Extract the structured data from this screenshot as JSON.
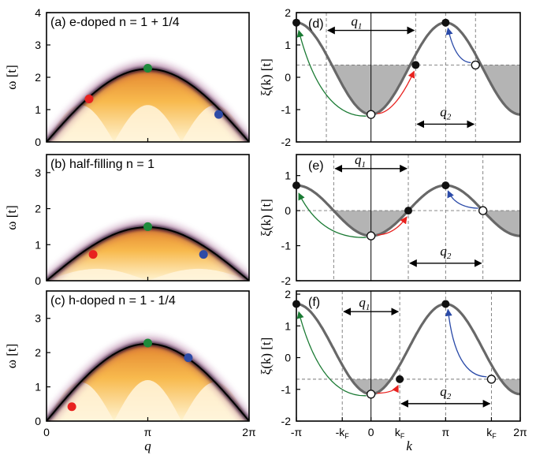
{
  "colors": {
    "red": "#e8221f",
    "green": "#1e8a3b",
    "blue": "#2d4aa6",
    "band_gray": "#686868",
    "fill_gray": "#b4b4b4",
    "arrow_green": "#1a7a33",
    "arrow_red": "#e8221f",
    "arrow_blue": "#2a4aa8"
  },
  "spectra": [
    {
      "panel_label": "(a) e-doped n = 1 + 1/4",
      "ylabel": "ω [t]",
      "yticks": [
        "0",
        "1",
        "2",
        "3",
        "4"
      ],
      "ylim": [
        0,
        4
      ],
      "xticks": [],
      "xlabel": "",
      "dispersion_peak": 2.28,
      "points": [
        {
          "color": "red",
          "q": 0.42,
          "w": 1.33
        },
        {
          "color": "green",
          "q": 1.0,
          "w": 2.28
        },
        {
          "color": "blue",
          "q": 1.7,
          "w": 0.85
        }
      ]
    },
    {
      "panel_label": "(b) half-filling n = 1",
      "ylabel": "ω [t]",
      "yticks": [
        "0",
        "1",
        "2",
        "3"
      ],
      "ylim": [
        0,
        3.5
      ],
      "xticks": [],
      "xlabel": "",
      "dispersion_peak": 1.5,
      "points": [
        {
          "color": "red",
          "q": 0.46,
          "w": 0.73
        },
        {
          "color": "green",
          "q": 1.0,
          "w": 1.5
        },
        {
          "color": "blue",
          "q": 1.55,
          "w": 0.73
        }
      ]
    },
    {
      "panel_label": "(c) h-doped n = 1 - 1/4",
      "ylabel": "ω [t]",
      "yticks": [
        "0",
        "1",
        "2",
        "3"
      ],
      "ylim": [
        0,
        3.8
      ],
      "xticks": [
        "0",
        "π",
        "2π"
      ],
      "xlabel": "q",
      "dispersion_peak": 2.28,
      "points": [
        {
          "color": "red",
          "q": 0.25,
          "w": 0.42
        },
        {
          "color": "green",
          "q": 1.0,
          "w": 2.28
        },
        {
          "color": "blue",
          "q": 1.4,
          "w": 1.85
        }
      ]
    }
  ],
  "bands": [
    {
      "panel_label": "(d)",
      "ylabel": "ξ(k) [t]",
      "yticks": [
        "-2",
        "-1",
        "0",
        "1",
        "2"
      ],
      "ylim": [
        -2,
        2
      ],
      "xlim": [
        -3.1416,
        6.2832
      ],
      "amp": 1.42,
      "offset": 0.27,
      "fermi_level": 0.38,
      "kf_neg": -1.88,
      "kf_pos": 1.88,
      "kf_pos2": 4.4,
      "q1_label": "q1",
      "q2_label": "q2",
      "q1_span": [
        -1.88,
        1.88
      ],
      "q1_y": 1.45,
      "q2_span": [
        1.88,
        4.4
      ],
      "q2_y": -1.45,
      "xticks": [],
      "xtick_labels_kF": false,
      "xlabel": ""
    },
    {
      "panel_label": "(e)",
      "ylabel": "ξ(k) [t]",
      "yticks": [
        "-2",
        "-1",
        "0",
        "1"
      ],
      "ylim": [
        -2,
        1.6
      ],
      "xlim": [
        -3.1416,
        6.2832
      ],
      "amp": 0.72,
      "offset": 0.0,
      "fermi_level": 0.0,
      "kf_neg": -1.5708,
      "kf_pos": 1.5708,
      "kf_pos2": 4.7124,
      "q1_label": "q1",
      "q2_label": "q2",
      "q1_span": [
        -1.5708,
        1.5708
      ],
      "q1_y": 1.2,
      "q2_span": [
        1.5708,
        4.7124
      ],
      "q2_y": -1.5,
      "xticks": [],
      "xtick_labels_kF": false,
      "xlabel": ""
    },
    {
      "panel_label": "(f)",
      "ylabel": "ξ(k) [t]",
      "yticks": [
        "-2",
        "-1",
        "0",
        "1",
        "2"
      ],
      "ylim": [
        -2,
        2.1
      ],
      "xlim": [
        -3.1416,
        6.2832
      ],
      "amp": 1.42,
      "offset": 0.27,
      "fermi_level": -0.68,
      "kf_neg": -1.21,
      "kf_pos": 1.21,
      "kf_pos2": 5.07,
      "q1_label": "q1",
      "q2_label": "q2",
      "q1_span": [
        -1.21,
        1.21
      ],
      "q1_y": 1.45,
      "q2_span": [
        1.21,
        5.07
      ],
      "q2_y": -1.45,
      "xticks": [
        "-π",
        "-kF",
        "0",
        "kF",
        "π",
        "kF",
        "2π"
      ],
      "xlabel": "k"
    }
  ]
}
